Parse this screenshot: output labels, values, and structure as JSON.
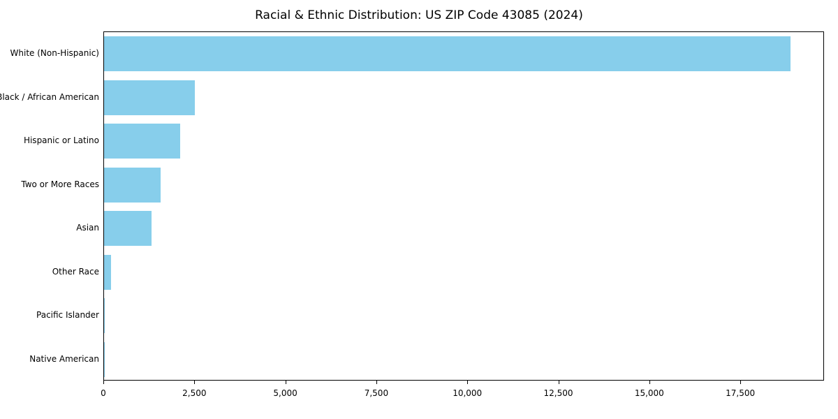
{
  "chart_data": {
    "type": "bar",
    "orientation": "horizontal",
    "title": "Racial & Ethnic Distribution: US ZIP Code 43085 (2024)",
    "xlabel": "",
    "ylabel": "",
    "xlim": [
      0,
      19800
    ],
    "grid": false,
    "bar_color": "#87CEEB",
    "categories": [
      "White (Non-Hispanic)",
      "Black / African American",
      "Hispanic or Latino",
      "Two or More Races",
      "Asian",
      "Other Race",
      "Pacific Islander",
      "Native American"
    ],
    "values": [
      18900,
      2500,
      2100,
      1550,
      1300,
      200,
      20,
      10
    ],
    "xticks": [
      {
        "value": 0,
        "label": "0"
      },
      {
        "value": 2500,
        "label": "2,500"
      },
      {
        "value": 5000,
        "label": "5,000"
      },
      {
        "value": 7500,
        "label": "7,500"
      },
      {
        "value": 10000,
        "label": "10,000"
      },
      {
        "value": 12500,
        "label": "12,500"
      },
      {
        "value": 15000,
        "label": "15,000"
      },
      {
        "value": 17500,
        "label": "17,500"
      }
    ]
  }
}
